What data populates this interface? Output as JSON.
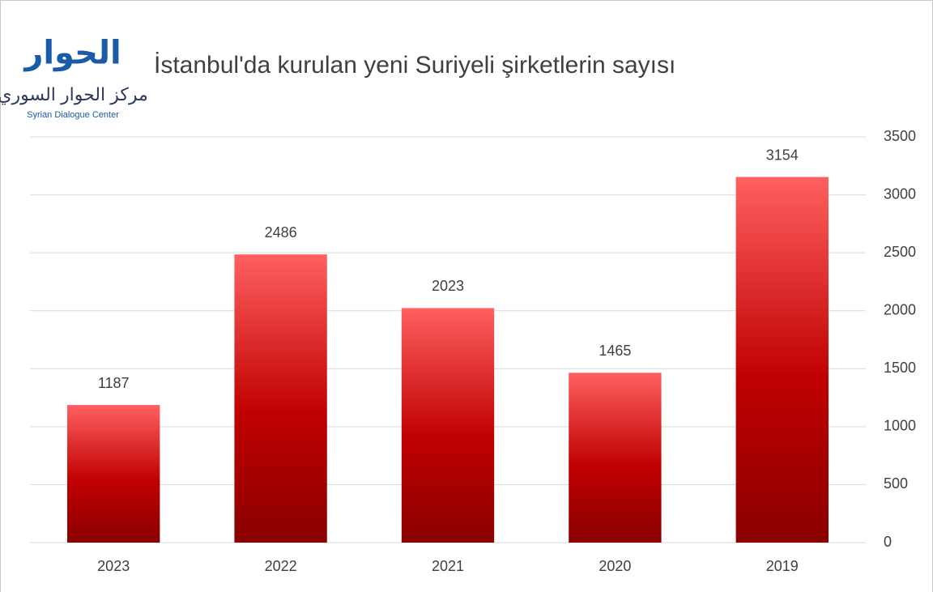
{
  "chart_data": {
    "type": "bar",
    "title": "İstanbul'da kurulan yeni Suriyeli şirketlerin sayısı",
    "logo": {
      "mark": "الحوار",
      "arabic": "مركز الحوار السوري",
      "english": "Syrian Dialogue Center"
    },
    "categories": [
      "2023",
      "2022",
      "2021",
      "2020",
      "2019"
    ],
    "values": [
      1187,
      2486,
      2023,
      1465,
      3154
    ],
    "color": "#c00000",
    "ylim": [
      0,
      3500
    ],
    "yticks": [
      0,
      500,
      1000,
      1500,
      2000,
      2500,
      3000,
      3500
    ],
    "y_axis_side": "right",
    "grid": true,
    "data_labels": true
  }
}
